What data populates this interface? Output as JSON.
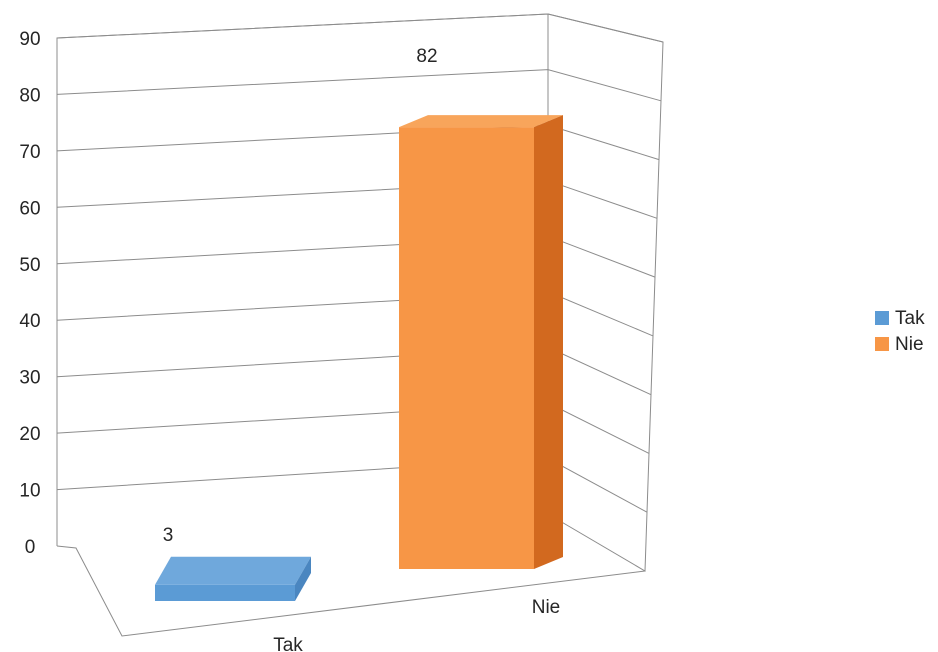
{
  "chart_data": {
    "type": "bar",
    "style": "3d-column",
    "categories": [
      "Tak",
      "Nie"
    ],
    "values": [
      3,
      82
    ],
    "data_labels": [
      "3",
      "82"
    ],
    "ylim": [
      0,
      90
    ],
    "yticks": [
      "0",
      "10",
      "20",
      "30",
      "40",
      "50",
      "60",
      "70",
      "80",
      "90"
    ],
    "grid": true,
    "legend": {
      "position": "right",
      "entries": [
        {
          "label": "Tak",
          "color": "#5b9bd5"
        },
        {
          "label": "Nie",
          "color": "#f79646"
        }
      ]
    },
    "colors": {
      "Tak": {
        "front": "#5b9bd5",
        "top": "#6fa8dc",
        "side": "#4a86c0"
      },
      "Nie": {
        "front": "#f79646",
        "top": "#f8a55b",
        "side": "#d2691f"
      }
    }
  }
}
